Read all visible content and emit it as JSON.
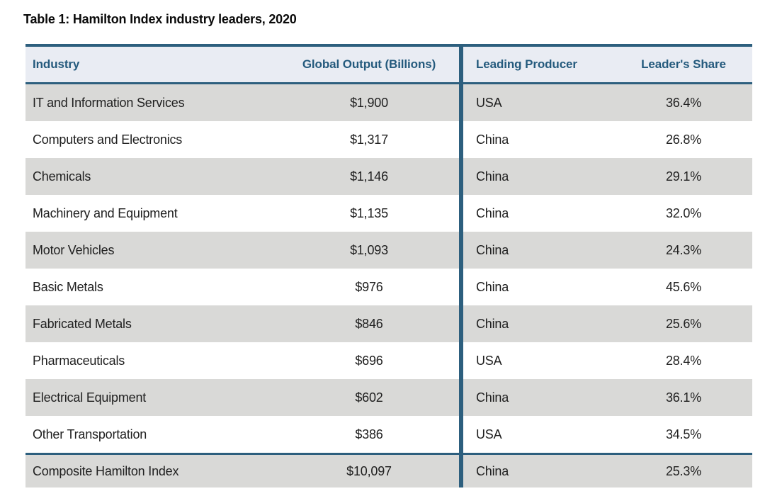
{
  "title": "Table 1: Hamilton Index industry leaders, 2020",
  "table": {
    "columns": [
      "Industry",
      "Global Output (Billions)",
      "Leading Producer",
      "Leader's Share"
    ],
    "rows": [
      {
        "industry": "IT and Information Services",
        "output": "$1,900",
        "producer": "USA",
        "share": "36.4%"
      },
      {
        "industry": "Computers and Electronics",
        "output": "$1,317",
        "producer": "China",
        "share": "26.8%"
      },
      {
        "industry": "Chemicals",
        "output": "$1,146",
        "producer": "China",
        "share": "29.1%"
      },
      {
        "industry": "Machinery and Equipment",
        "output": "$1,135",
        "producer": "China",
        "share": "32.0%"
      },
      {
        "industry": "Motor Vehicles",
        "output": "$1,093",
        "producer": "China",
        "share": "24.3%"
      },
      {
        "industry": "Basic Metals",
        "output": "$976",
        "producer": "China",
        "share": "45.6%"
      },
      {
        "industry": "Fabricated Metals",
        "output": "$846",
        "producer": "China",
        "share": "25.6%"
      },
      {
        "industry": "Pharmaceuticals",
        "output": "$696",
        "producer": "USA",
        "share": "28.4%"
      },
      {
        "industry": "Electrical Equipment",
        "output": "$602",
        "producer": "China",
        "share": "36.1%"
      },
      {
        "industry": "Other Transportation",
        "output": "$386",
        "producer": "USA",
        "share": "34.5%"
      }
    ],
    "footer": {
      "industry": "Composite Hamilton Index",
      "output": "$10,097",
      "producer": "China",
      "share": "25.3%"
    }
  },
  "colors": {
    "accent": "#2d5f7e",
    "header_bg": "#e9ecf3",
    "header_text": "#245a7d",
    "row_alt_bg": "#d9d9d7",
    "body_text": "#202020"
  }
}
